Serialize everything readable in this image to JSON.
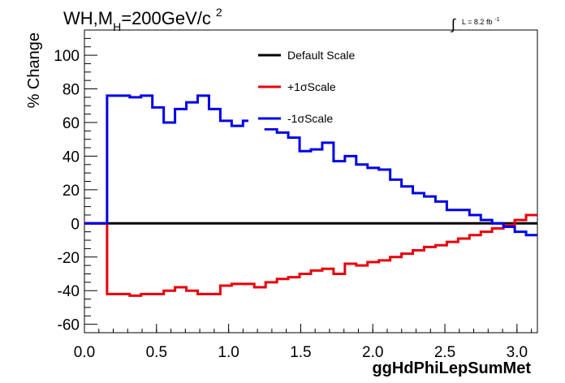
{
  "chart_data": {
    "type": "line",
    "title": "WH,M",
    "title_sub": "H",
    "title_rest": "=200GeV/c",
    "title_sup": "2",
    "lumi_text": "L = 8.2 fb",
    "lumi_sup": "-1",
    "xlabel": "ggHdPhiLepSumMet",
    "ylabel": "% Change",
    "xlim": [
      0,
      3.1416
    ],
    "ylim": [
      -65,
      115
    ],
    "x_ticks": [
      0.0,
      0.5,
      1.0,
      1.5,
      2.0,
      2.5,
      3.0
    ],
    "x_tick_labels": [
      "0.0",
      "0.5",
      "1.0",
      "1.5",
      "2.0",
      "2.5",
      "3.0"
    ],
    "y_ticks": [
      -60,
      -40,
      -20,
      0,
      20,
      40,
      60,
      80,
      100
    ],
    "y_tick_labels": [
      "-60",
      "-40",
      "-20",
      "0",
      "20",
      "40",
      "60",
      "80",
      "100"
    ],
    "grid": false,
    "legend_position": "top-center",
    "bin_edges": [
      0.0,
      0.0785,
      0.157,
      0.2356,
      0.3142,
      0.3927,
      0.4712,
      0.5498,
      0.6283,
      0.7069,
      0.7854,
      0.8639,
      0.9425,
      1.021,
      1.0996,
      1.1781,
      1.2566,
      1.3352,
      1.4137,
      1.4923,
      1.5708,
      1.6493,
      1.7279,
      1.8064,
      1.885,
      1.9635,
      2.042,
      2.1206,
      2.1991,
      2.2777,
      2.3562,
      2.4347,
      2.5133,
      2.5918,
      2.6704,
      2.7489,
      2.8274,
      2.906,
      2.9845,
      3.0631,
      3.1416
    ],
    "series": [
      {
        "name": "Default Scale",
        "color": "#000000",
        "values": [
          0,
          0,
          0,
          0,
          0,
          0,
          0,
          0,
          0,
          0,
          0,
          0,
          0,
          0,
          0,
          0,
          0,
          0,
          0,
          0,
          0,
          0,
          0,
          0,
          0,
          0,
          0,
          0,
          0,
          0,
          0,
          0,
          0,
          0,
          0,
          0,
          0,
          0,
          0,
          0
        ]
      },
      {
        "name": "+1σScale",
        "color": "#e8000b",
        "values": [
          0,
          0,
          -42,
          -42,
          -43,
          -42,
          -42,
          -40,
          -38,
          -40,
          -42,
          -42,
          -37,
          -36,
          -36,
          -38,
          -35,
          -33,
          -32,
          -30,
          -28,
          -27,
          -30,
          -24,
          -25,
          -23,
          -22,
          -20,
          -18,
          -16,
          -14,
          -13,
          -11,
          -9,
          -7,
          -5,
          -3,
          -1,
          2,
          5
        ]
      },
      {
        "name": "-1σScale",
        "color": "#0000e6",
        "values": [
          0,
          0,
          76,
          76,
          75,
          76,
          69,
          60,
          68,
          72,
          76,
          68,
          61,
          58,
          61,
          62,
          56,
          54,
          51,
          43,
          44,
          48,
          37,
          40,
          35,
          33,
          32,
          26,
          22,
          18,
          16,
          13,
          8,
          8,
          5,
          2,
          0,
          -2,
          -5,
          -7
        ]
      }
    ]
  }
}
